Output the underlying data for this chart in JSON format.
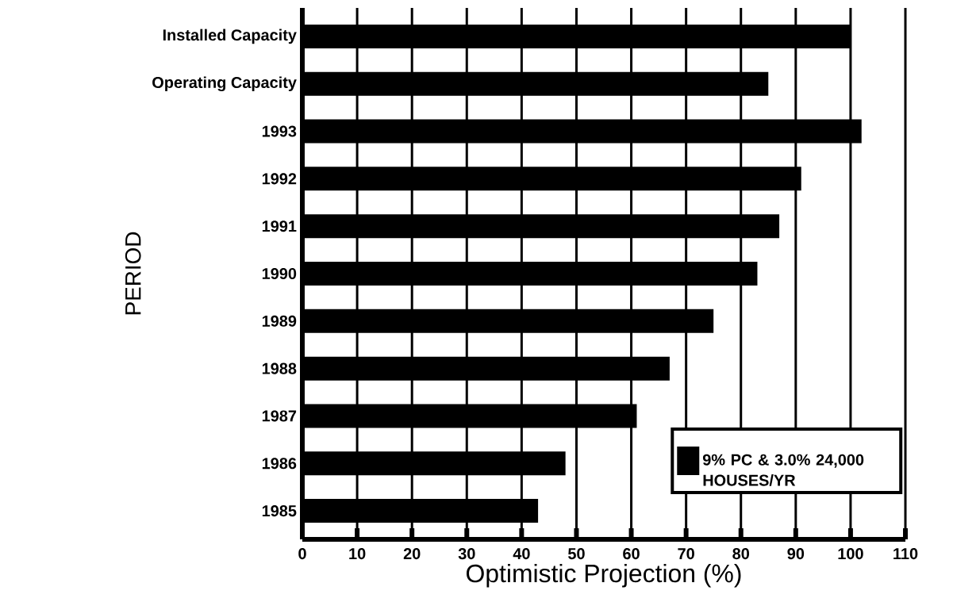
{
  "chart_data": {
    "type": "bar",
    "orientation": "horizontal",
    "categories": [
      "Installed Capacity",
      "Operating Capacity",
      "1993",
      "1992",
      "1991",
      "1990",
      "1989",
      "1988",
      "1987",
      "1986",
      "1985"
    ],
    "series": [
      {
        "name": "9% PC & 3.0% 24,000 HOUSES/YR",
        "color": "#000000",
        "values": [
          100,
          85,
          102,
          91,
          87,
          83,
          75,
          67,
          61,
          48,
          43
        ]
      }
    ],
    "xlabel": "Optimistic Projection (%)",
    "ylabel": "PERIOD",
    "xlim": [
      0,
      110
    ],
    "xticks": [
      0,
      10,
      20,
      30,
      40,
      50,
      60,
      70,
      80,
      90,
      100,
      110
    ],
    "grid": "x",
    "legend": "bottom right"
  }
}
